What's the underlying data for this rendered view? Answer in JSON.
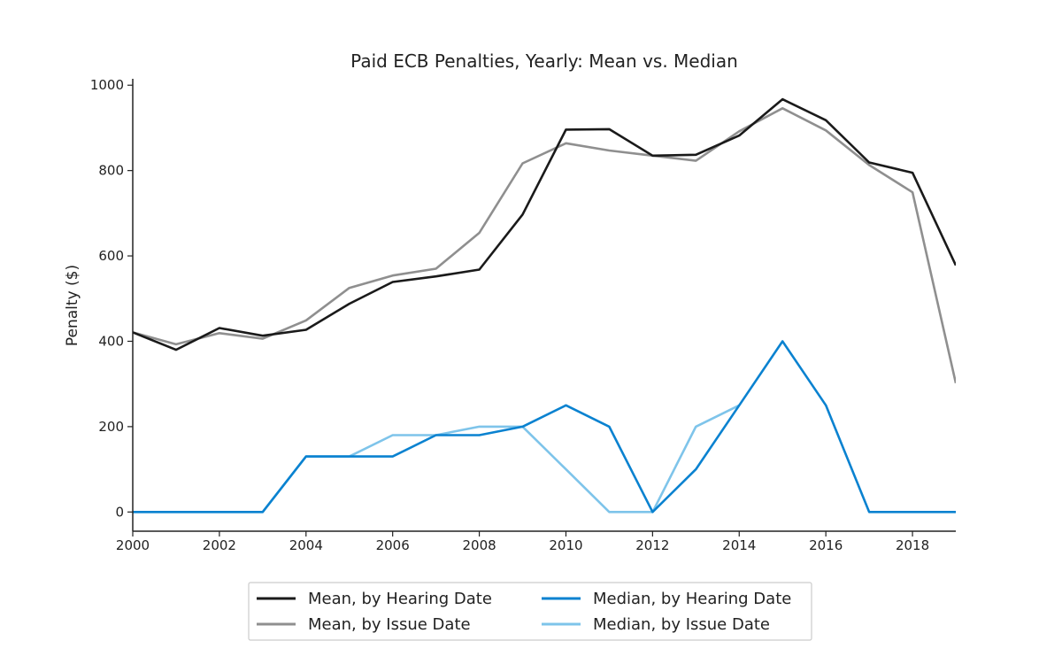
{
  "chart_data": {
    "type": "line",
    "title": "Paid ECB Penalties, Yearly: Mean vs. Median",
    "xlabel": "",
    "ylabel": "Penalty ($)",
    "xlim": [
      2000,
      2019
    ],
    "ylim": [
      -45,
      1015
    ],
    "x_ticks": [
      "2000",
      "2002",
      "2004",
      "2006",
      "2008",
      "2010",
      "2012",
      "2014",
      "2016",
      "2018"
    ],
    "y_ticks": [
      "0",
      "200",
      "400",
      "600",
      "800",
      "1000"
    ],
    "grid": false,
    "legend_position": "bottom-center",
    "series": [
      {
        "name": "Mean, by Hearing Date",
        "color": "#1a1a1a",
        "x": [
          2000,
          2001,
          2002,
          2003,
          2004,
          2005,
          2006,
          2007,
          2008,
          2009,
          2010,
          2011,
          2012,
          2013,
          2014,
          2015,
          2016,
          2017,
          2018,
          2019
        ],
        "values": [
          421,
          380,
          431,
          413,
          427,
          488,
          539,
          552,
          568,
          697,
          896,
          897,
          835,
          837,
          882,
          967,
          918,
          819,
          795,
          578
        ]
      },
      {
        "name": "Mean, by Issue Date",
        "color": "#8f8f8f",
        "x": [
          2000,
          2001,
          2002,
          2003,
          2004,
          2005,
          2006,
          2007,
          2008,
          2009,
          2010,
          2011,
          2012,
          2013,
          2014,
          2015,
          2016,
          2017,
          2018,
          2019
        ],
        "values": [
          421,
          393,
          419,
          406,
          449,
          525,
          554,
          570,
          654,
          817,
          864,
          847,
          835,
          823,
          892,
          946,
          894,
          813,
          749,
          302
        ]
      },
      {
        "name": "Median, by Hearing Date",
        "color": "#0a82d0",
        "x": [
          2000,
          2001,
          2002,
          2003,
          2004,
          2005,
          2006,
          2007,
          2008,
          2009,
          2010,
          2011,
          2012,
          2013,
          2014,
          2015,
          2016,
          2017,
          2018,
          2019
        ],
        "values": [
          0,
          0,
          0,
          0,
          130,
          130,
          130,
          180,
          180,
          200,
          250,
          200,
          0,
          100,
          250,
          400,
          250,
          0,
          0,
          0
        ]
      },
      {
        "name": "Median, by Issue Date",
        "color": "#7ec4ea",
        "x": [
          2000,
          2001,
          2002,
          2003,
          2004,
          2005,
          2006,
          2007,
          2008,
          2009,
          2010,
          2011,
          2012,
          2013,
          2014
        ],
        "values": [
          0,
          0,
          0,
          0,
          130,
          130,
          180,
          180,
          200,
          200,
          100,
          0,
          0,
          200,
          250
        ]
      }
    ]
  }
}
